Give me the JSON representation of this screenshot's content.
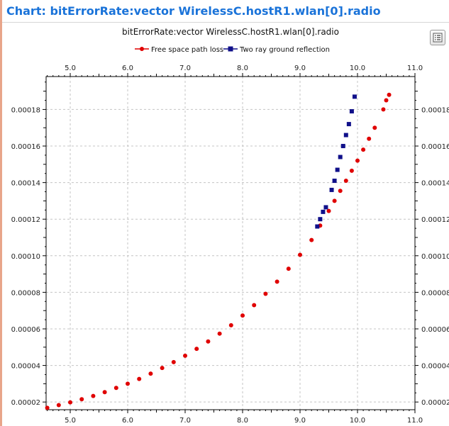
{
  "window": {
    "header_title": "Chart: bitErrorRate:vector WirelessC.hostR1.wlan[0].radio",
    "accent": "#1a73d9",
    "menu_icon": "list-icon"
  },
  "chart_data": {
    "type": "scatter",
    "title": "bitErrorRate:vector WirelessC.hostR1.wlan[0].radio",
    "xlabel": "",
    "ylabel": "",
    "xlim": [
      4.58,
      11.0
    ],
    "ylim": [
      1.58e-05,
      0.000198
    ],
    "grid": true,
    "legend": "top-center",
    "x_ticks": [
      "5.0",
      "6.0",
      "7.0",
      "8.0",
      "9.0",
      "10.0",
      "11.0"
    ],
    "y_ticks": [
      "0.00002",
      "0.00004",
      "0.00006",
      "0.00008",
      "0.00010",
      "0.00012",
      "0.00014",
      "0.00016",
      "0.00018"
    ],
    "series": [
      {
        "name": "Free space path loss",
        "color": "#e00000",
        "marker": "circle",
        "x": [
          4.6,
          4.8,
          5.0,
          5.2,
          5.4,
          5.6,
          5.8,
          6.0,
          6.2,
          6.4,
          6.6,
          6.8,
          7.0,
          7.2,
          7.4,
          7.6,
          7.8,
          8.0,
          8.2,
          8.4,
          8.6,
          8.8,
          9.0,
          9.2,
          9.35,
          9.5,
          9.6,
          9.7,
          9.8,
          9.9,
          10.0,
          10.1,
          10.2,
          10.3,
          10.45,
          10.5,
          10.55
        ],
        "y": [
          1.68e-05,
          1.83e-05,
          1.98e-05,
          2.15e-05,
          2.33e-05,
          2.54e-05,
          2.77e-05,
          3e-05,
          3.26e-05,
          3.55e-05,
          3.86e-05,
          4.18e-05,
          4.53e-05,
          4.91e-05,
          5.31e-05,
          5.74e-05,
          6.2e-05,
          6.73e-05,
          7.3e-05,
          7.92e-05,
          8.58e-05,
          9.29e-05,
          0.0001005,
          0.0001086,
          0.0001165,
          0.0001245,
          0.00013,
          0.0001355,
          0.000141,
          0.0001465,
          0.000152,
          0.000158,
          0.000164,
          0.00017,
          0.00018,
          0.000185,
          0.000188
        ]
      },
      {
        "name": "Two ray ground reflection",
        "color": "#10108a",
        "marker": "square",
        "x": [
          9.3,
          9.35,
          9.4,
          9.45,
          9.55,
          9.6,
          9.65,
          9.7,
          9.75,
          9.8,
          9.85,
          9.9,
          9.95
        ],
        "y": [
          0.000116,
          0.00012,
          0.000124,
          0.0001265,
          0.000136,
          0.000141,
          0.000147,
          0.000154,
          0.00016,
          0.000166,
          0.000172,
          0.000179,
          0.000187
        ]
      }
    ]
  }
}
